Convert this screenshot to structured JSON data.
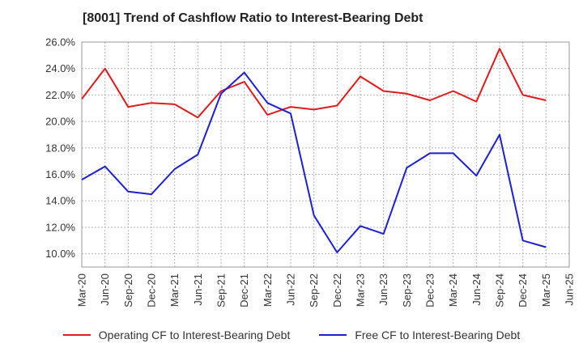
{
  "title": "[8001]  Trend of Cashflow Ratio to Interest-Bearing Debt",
  "chart_data": {
    "type": "line",
    "x": [
      "Mar-20",
      "Jun-20",
      "Sep-20",
      "Dec-20",
      "Mar-21",
      "Jun-21",
      "Sep-21",
      "Dec-21",
      "Mar-22",
      "Jun-22",
      "Sep-22",
      "Dec-22",
      "Mar-23",
      "Jun-23",
      "Sep-23",
      "Dec-23",
      "Mar-24",
      "Jun-24",
      "Sep-24",
      "Dec-24",
      "Mar-25",
      "Jun-25"
    ],
    "ylim": [
      9.0,
      26.0
    ],
    "yticks": [
      10,
      12,
      14,
      16,
      18,
      20,
      22,
      24,
      26
    ],
    "ytick_labels": [
      "10.0%",
      "12.0%",
      "14.0%",
      "16.0%",
      "18.0%",
      "20.0%",
      "22.0%",
      "24.0%",
      "26.0%"
    ],
    "grid": true,
    "legend_position": "bottom",
    "series": [
      {
        "name": "Operating CF to Interest-Bearing Debt",
        "color": "#e31a1c",
        "values": [
          21.7,
          24.0,
          21.1,
          21.4,
          21.3,
          20.3,
          22.3,
          23.0,
          20.5,
          21.1,
          20.9,
          21.2,
          23.4,
          22.3,
          22.1,
          21.6,
          22.3,
          21.5,
          25.5,
          22.0,
          21.6,
          null
        ]
      },
      {
        "name": "Free CF to Interest-Bearing Debt",
        "color": "#1f1fd6",
        "values": [
          15.6,
          16.6,
          14.7,
          14.5,
          16.4,
          17.5,
          22.1,
          23.7,
          21.4,
          20.6,
          12.9,
          10.1,
          12.1,
          11.5,
          16.5,
          17.6,
          17.6,
          15.9,
          19.0,
          11.0,
          10.5,
          null
        ]
      }
    ]
  }
}
